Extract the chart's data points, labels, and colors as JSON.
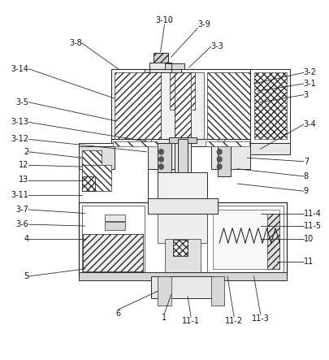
{
  "figure_width": 4.05,
  "figure_height": 4.43,
  "dpi": 100,
  "bg_color": "#ffffff",
  "lc": "#2a2a2a",
  "lw": 0.7,
  "fs": 7.0
}
